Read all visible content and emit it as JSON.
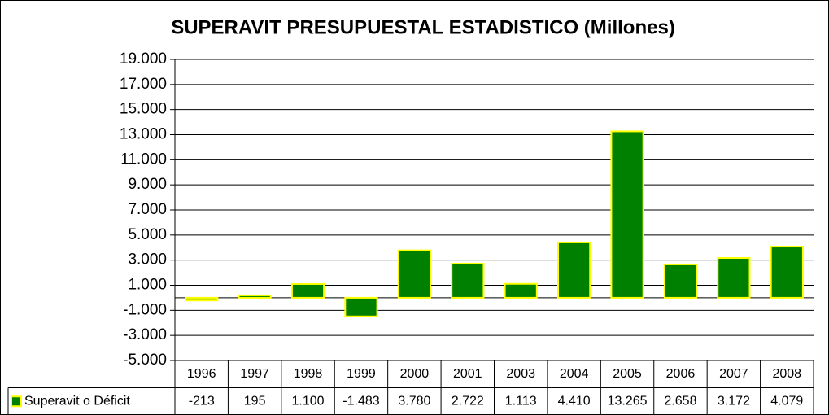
{
  "chart_data": {
    "type": "bar",
    "title": "SUPERAVIT PRESUPUESTAL ESTADISTICO (Millones)",
    "categories": [
      "1996",
      "1997",
      "1998",
      "1999",
      "2000",
      "2001",
      "2003",
      "2004",
      "2005",
      "2006",
      "2007",
      "2008"
    ],
    "series": [
      {
        "name": "Superavit o Déficit",
        "color": "#008000",
        "edgecolor": "#ffff00",
        "values": [
          -213,
          195,
          1100,
          -1483,
          3780,
          2722,
          1113,
          4410,
          13265,
          2658,
          3172,
          4079
        ],
        "value_labels": [
          "-213",
          "195",
          "1.100",
          "-1.483",
          "3.780",
          "2.722",
          "1.113",
          "4.410",
          "13.265",
          "2.658",
          "3.172",
          "4.079"
        ]
      }
    ],
    "ylim": [
      -5000,
      19000
    ],
    "yticks": [
      {
        "value": -5000,
        "label": "-5.000"
      },
      {
        "value": -3000,
        "label": "-3.000"
      },
      {
        "value": -1000,
        "label": "-1.000"
      },
      {
        "value": 1000,
        "label": "1.000"
      },
      {
        "value": 3000,
        "label": "3.000"
      },
      {
        "value": 5000,
        "label": "5.000"
      },
      {
        "value": 7000,
        "label": "7.000"
      },
      {
        "value": 9000,
        "label": "9.000"
      },
      {
        "value": 11000,
        "label": "11.000"
      },
      {
        "value": 13000,
        "label": "13.000"
      },
      {
        "value": 15000,
        "label": "15.000"
      },
      {
        "value": 17000,
        "label": "17.000"
      },
      {
        "value": 19000,
        "label": "19.000"
      }
    ],
    "grid": true,
    "data_table": true
  }
}
